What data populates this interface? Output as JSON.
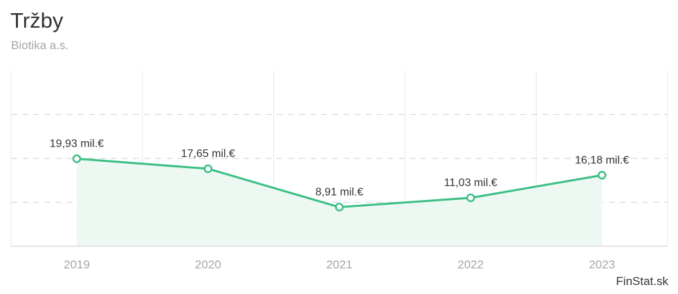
{
  "header": {
    "title": "Tržby",
    "subtitle": "Biotika a.s."
  },
  "credit": "FinStat.sk",
  "colors": {
    "line": "#3cbf83",
    "area": "#eef8f3",
    "grid_dashed": "#d9d9d9",
    "grid_vertical": "#dcefe6",
    "axis": "#cccccc",
    "title": "#333333",
    "muted": "#a6a6a6"
  },
  "chart_data": {
    "type": "area",
    "title": "Tržby",
    "subtitle": "Biotika a.s.",
    "categories": [
      "2019",
      "2020",
      "2021",
      "2022",
      "2023"
    ],
    "series": [
      {
        "values": [
          19.93,
          17.65,
          8.91,
          11.03,
          16.18
        ],
        "labels": [
          "19,93 mil.€",
          "17,65 mil.€",
          "8,91 mil.€",
          "11,03 mil.€",
          "16,18 mil.€"
        ]
      }
    ],
    "ylim": [
      0,
      40
    ],
    "y_gridlines": [
      10,
      20,
      30
    ],
    "grid": true,
    "legend": "none"
  }
}
